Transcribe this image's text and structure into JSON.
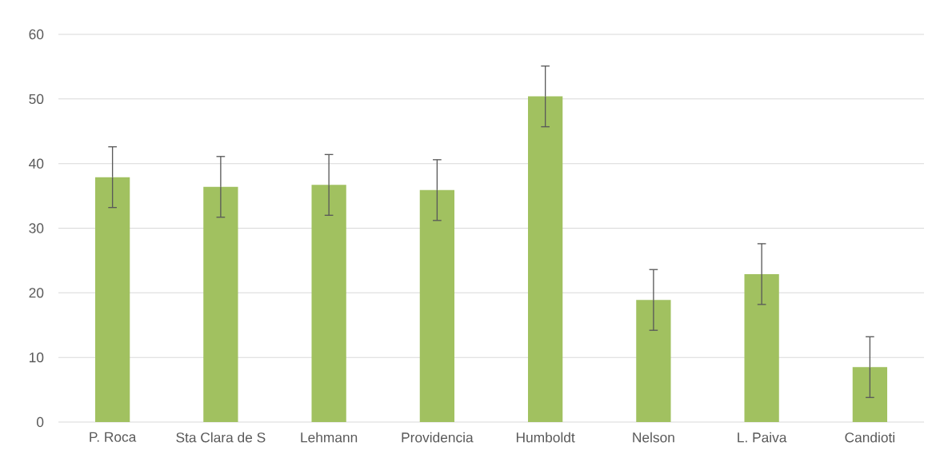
{
  "chart_data": {
    "type": "bar",
    "categories": [
      "P. Roca",
      "Sta Clara de S",
      "Lehmann",
      "Providencia",
      "Humboldt",
      "Nelson",
      "L. Paiva",
      "Candioti"
    ],
    "values": [
      37.9,
      36.4,
      36.7,
      35.9,
      50.4,
      18.9,
      22.9,
      8.5
    ],
    "errors": [
      4.7,
      4.7,
      4.7,
      4.7,
      4.7,
      4.7,
      4.7,
      4.7
    ],
    "color": "#a1c160",
    "ylim": [
      0,
      60
    ],
    "yticks": [
      0,
      10,
      20,
      30,
      40,
      50,
      60
    ],
    "grid": "y"
  }
}
